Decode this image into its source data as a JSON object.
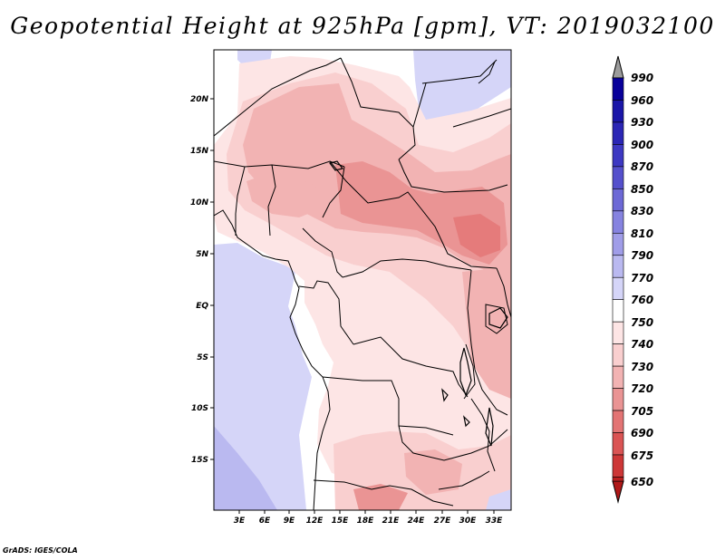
{
  "title": "Geopotential Height at 925hPa [gpm], VT: 2019032100",
  "footer": "GrADS: IGES/COLA",
  "map": {
    "variable": "Geopotential Height",
    "level": "925hPa",
    "units": "gpm",
    "valid_time": "2019032100",
    "lon_range": [
      0,
      36
    ],
    "lat_range": [
      -20,
      24.5
    ],
    "lat_labels": [
      {
        "value": 20,
        "label": "20N"
      },
      {
        "value": 15,
        "label": "15N"
      },
      {
        "value": 10,
        "label": "10N"
      },
      {
        "value": 5,
        "label": "5N"
      },
      {
        "value": 0,
        "label": "EQ"
      },
      {
        "value": -5,
        "label": "5S"
      },
      {
        "value": -10,
        "label": "10S"
      },
      {
        "value": -15,
        "label": "15S"
      }
    ],
    "lon_labels": [
      {
        "value": 3,
        "label": "3E"
      },
      {
        "value": 6,
        "label": "6E"
      },
      {
        "value": 9,
        "label": "9E"
      },
      {
        "value": 12,
        "label": "12E"
      },
      {
        "value": 15,
        "label": "15E"
      },
      {
        "value": 18,
        "label": "18E"
      },
      {
        "value": 21,
        "label": "21E"
      },
      {
        "value": 24,
        "label": "24E"
      },
      {
        "value": 27,
        "label": "27E"
      },
      {
        "value": 30,
        "label": "30E"
      },
      {
        "value": 33,
        "label": "33E"
      }
    ]
  },
  "colorbar": {
    "levels": [
      {
        "label": "990",
        "color": "#08009a"
      },
      {
        "label": "960",
        "color": "#1a16a8"
      },
      {
        "label": "930",
        "color": "#2b26b5"
      },
      {
        "label": "900",
        "color": "#3d38c2"
      },
      {
        "label": "870",
        "color": "#5550cc"
      },
      {
        "label": "850",
        "color": "#6d69d6"
      },
      {
        "label": "830",
        "color": "#8683e0"
      },
      {
        "label": "810",
        "color": "#a09de8"
      },
      {
        "label": "790",
        "color": "#bab9f0"
      },
      {
        "label": "770",
        "color": "#d5d5f8"
      },
      {
        "label": "760",
        "color": "#ffffff"
      },
      {
        "label": "750",
        "color": "#fde5e5"
      },
      {
        "label": "740",
        "color": "#f9cfcf"
      },
      {
        "label": "730",
        "color": "#f2b3b3"
      },
      {
        "label": "720",
        "color": "#ea9494"
      },
      {
        "label": "705",
        "color": "#e37474"
      },
      {
        "label": "690",
        "color": "#da5454"
      },
      {
        "label": "675",
        "color": "#cd3737"
      },
      {
        "label": "650",
        "color": "#bc2020"
      }
    ],
    "top_arrow_color": "#9c9c9c",
    "bottom_arrow_color": "#b01818"
  }
}
